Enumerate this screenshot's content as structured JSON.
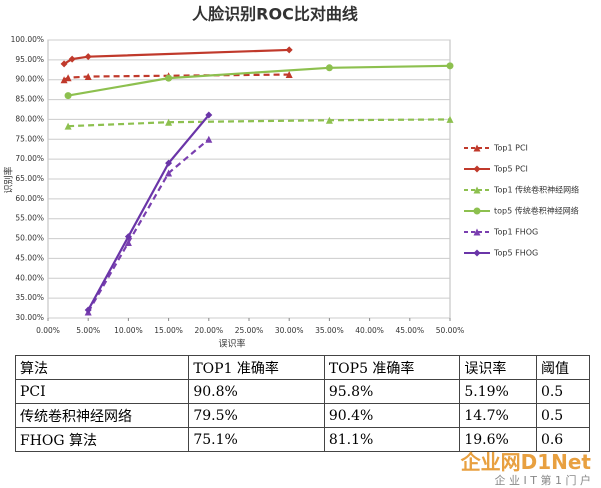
{
  "chart_data": {
    "type": "line",
    "title": "人脸识别ROC比对曲线",
    "x_label": "误识率",
    "y_label": "识别率",
    "xlim": [
      0,
      50
    ],
    "ylim": [
      30,
      100
    ],
    "grid": true,
    "legend": "right",
    "xticks": [
      {
        "value": 0,
        "label": "0.00%"
      },
      {
        "value": 5,
        "label": "5.00%"
      },
      {
        "value": 10,
        "label": "10.00%"
      },
      {
        "value": 15,
        "label": "15.00%"
      },
      {
        "value": 20,
        "label": "20.00%"
      },
      {
        "value": 25,
        "label": "25.00%"
      },
      {
        "value": 30,
        "label": "30.00%"
      },
      {
        "value": 35,
        "label": "35.00%"
      },
      {
        "value": 40,
        "label": "40.00%"
      },
      {
        "value": 45,
        "label": "45.00%"
      },
      {
        "value": 50,
        "label": "50.00%"
      }
    ],
    "yticks": [
      {
        "value": 30,
        "label": "30.00%"
      },
      {
        "value": 35,
        "label": "35.00%"
      },
      {
        "value": 40,
        "label": "40.00%"
      },
      {
        "value": 45,
        "label": "45.00%"
      },
      {
        "value": 50,
        "label": "50.00%"
      },
      {
        "value": 55,
        "label": "55.00%"
      },
      {
        "value": 60,
        "label": "60.00%"
      },
      {
        "value": 65,
        "label": "65.00%"
      },
      {
        "value": 70,
        "label": "70.00%"
      },
      {
        "value": 75,
        "label": "75.00%"
      },
      {
        "value": 80,
        "label": "80.00%"
      },
      {
        "value": 85,
        "label": "85.00%"
      },
      {
        "value": 90,
        "label": "90.00%"
      },
      {
        "value": 95,
        "label": "95.00%"
      },
      {
        "value": 100,
        "label": "100.00%"
      }
    ],
    "series": [
      {
        "name": "Top1 PCI",
        "color": "#c0392b",
        "dashed": true,
        "marker": "triangle",
        "x": [
          2,
          2.5,
          5,
          15,
          30
        ],
        "values": [
          90,
          90.5,
          90.8,
          91,
          91.3
        ]
      },
      {
        "name": "Top5 PCI",
        "color": "#c0392b",
        "dashed": false,
        "marker": "diamond",
        "x": [
          2,
          3,
          5,
          30
        ],
        "values": [
          94,
          95.2,
          95.8,
          97.5
        ]
      },
      {
        "name": "Top1 传统卷积神经网络",
        "color": "#8dc04f",
        "dashed": true,
        "marker": "triangle",
        "x": [
          2.5,
          15,
          35,
          50
        ],
        "values": [
          78.3,
          79.3,
          79.8,
          80
        ]
      },
      {
        "name": "top5 传统卷积神经网络",
        "color": "#8dc04f",
        "dashed": false,
        "marker": "circle",
        "x": [
          2.5,
          15,
          35,
          50
        ],
        "values": [
          86,
          90.4,
          93,
          93.5
        ]
      },
      {
        "name": "Top1 FHOG",
        "color": "#7a3fb0",
        "dashed": true,
        "marker": "triangle",
        "x": [
          5,
          10,
          15,
          20
        ],
        "values": [
          31.5,
          49,
          66.5,
          75
        ]
      },
      {
        "name": "Top5 FHOG",
        "color": "#6a35a8",
        "dashed": false,
        "marker": "diamond",
        "x": [
          5,
          10,
          15,
          20
        ],
        "values": [
          32,
          50.5,
          69,
          81.1
        ]
      }
    ]
  },
  "table": {
    "header": [
      "算法",
      "TOP1 准确率",
      "TOP5 准确率",
      "误识率",
      "阈值"
    ],
    "rows": [
      [
        "PCI",
        "90.8%",
        "95.8%",
        "5.19%",
        "0.5"
      ],
      [
        "传统卷积神经网络",
        "79.5%",
        "90.4%",
        "14.7%",
        "0.5"
      ],
      [
        "FHOG 算法",
        "75.1%",
        "81.1%",
        "19.6%",
        "0.6"
      ]
    ]
  },
  "watermark": {
    "logo": "企业网D1Net",
    "slogan": "企 业 I T 第 1 门 户"
  }
}
